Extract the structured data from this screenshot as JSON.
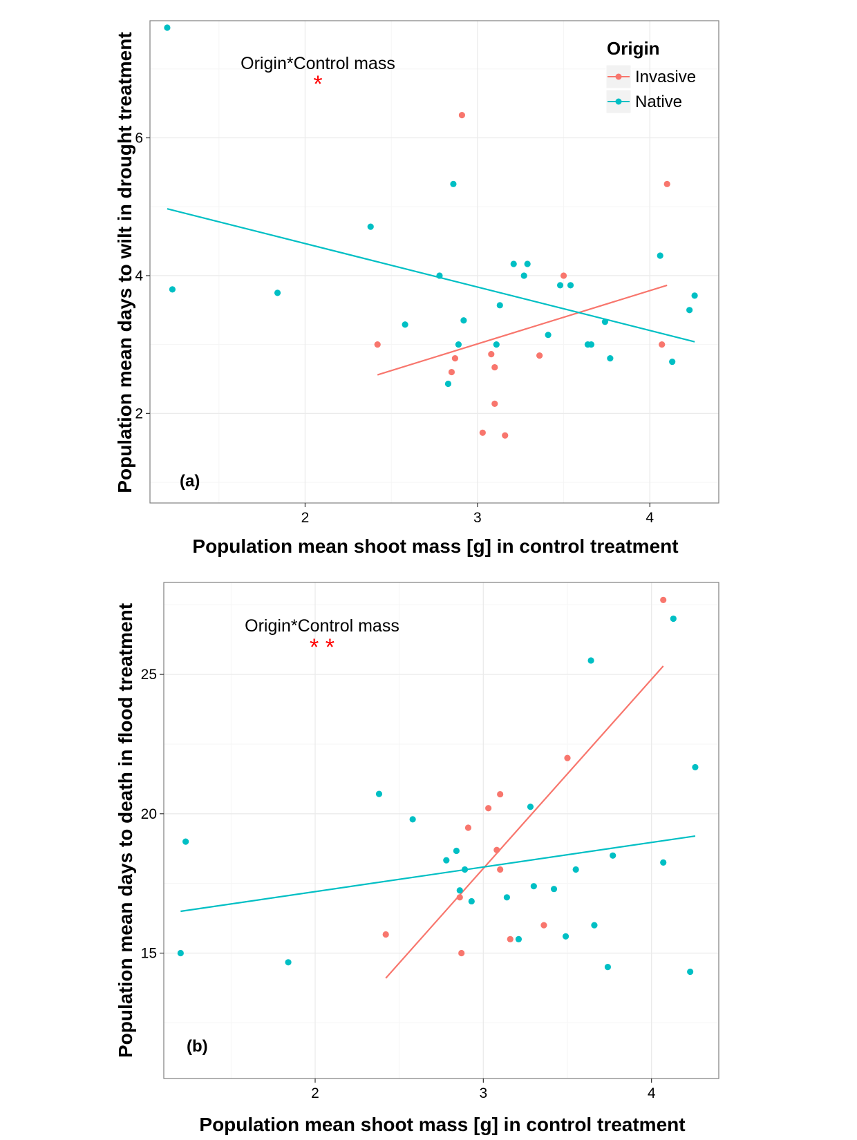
{
  "colors": {
    "Invasive": "#F8766D",
    "Native": "#00BFC4",
    "star": "#FF0000",
    "grid": "#EBEBEB",
    "border": "#7F7F7F"
  },
  "legend": {
    "title": "Origin",
    "items": [
      "Invasive",
      "Native"
    ]
  },
  "chart_data": [
    {
      "type": "scatter",
      "panel_label": "(a)",
      "xlabel": "Population mean shoot mass [g] in control treatment",
      "ylabel": "Population mean days to wilt in drought treatment",
      "annotation": "Origin*Control mass",
      "significance": "*",
      "xlim": [
        1.1,
        4.4
      ],
      "ylim": [
        0.7,
        7.7
      ],
      "xticks": [
        2,
        3,
        4
      ],
      "yticks": [
        2,
        4,
        6
      ],
      "legend_position": "top-right",
      "series": [
        {
          "name": "Invasive",
          "points": [
            [
              2.42,
              3.0
            ],
            [
              2.85,
              2.6
            ],
            [
              2.87,
              2.8
            ],
            [
              2.91,
              6.33
            ],
            [
              3.03,
              1.72
            ],
            [
              3.08,
              2.86
            ],
            [
              3.1,
              2.67
            ],
            [
              3.1,
              2.14
            ],
            [
              3.16,
              1.68
            ],
            [
              3.36,
              2.84
            ],
            [
              3.5,
              4.0
            ],
            [
              4.07,
              3.0
            ],
            [
              4.1,
              5.33
            ]
          ],
          "fit": [
            [
              2.42,
              2.56
            ],
            [
              4.1,
              3.86
            ]
          ]
        },
        {
          "name": "Native",
          "points": [
            [
              1.2,
              7.6
            ],
            [
              1.23,
              3.8
            ],
            [
              1.84,
              3.75
            ],
            [
              2.38,
              4.71
            ],
            [
              2.58,
              3.29
            ],
            [
              2.78,
              4.0
            ],
            [
              2.83,
              2.43
            ],
            [
              2.86,
              5.33
            ],
            [
              2.89,
              3.0
            ],
            [
              2.92,
              3.35
            ],
            [
              3.11,
              3.0
            ],
            [
              3.13,
              3.57
            ],
            [
              3.21,
              4.17
            ],
            [
              3.27,
              4.0
            ],
            [
              3.29,
              4.17
            ],
            [
              3.41,
              3.14
            ],
            [
              3.48,
              3.86
            ],
            [
              3.54,
              3.86
            ],
            [
              3.64,
              3.0
            ],
            [
              3.66,
              3.0
            ],
            [
              3.74,
              3.33
            ],
            [
              3.77,
              2.8
            ],
            [
              4.06,
              4.29
            ],
            [
              4.13,
              2.75
            ],
            [
              4.23,
              3.5
            ],
            [
              4.26,
              3.71
            ]
          ],
          "fit": [
            [
              1.2,
              4.97
            ],
            [
              4.26,
              3.04
            ]
          ]
        }
      ]
    },
    {
      "type": "scatter",
      "panel_label": "(b)",
      "xlabel": "Population mean shoot mass [g] in control treatment",
      "ylabel": "Population mean days to death in flood treatment",
      "annotation": "Origin*Control mass",
      "significance": "* *",
      "xlim": [
        1.1,
        4.4
      ],
      "ylim": [
        10.5,
        28.3
      ],
      "xticks": [
        2,
        3,
        4
      ],
      "yticks": [
        15,
        20,
        25
      ],
      "series": [
        {
          "name": "Invasive",
          "points": [
            [
              2.42,
              15.67
            ],
            [
              2.86,
              17.0
            ],
            [
              2.87,
              15.0
            ],
            [
              2.91,
              19.5
            ],
            [
              3.03,
              20.2
            ],
            [
              3.08,
              18.7
            ],
            [
              3.1,
              18.0
            ],
            [
              3.1,
              20.7
            ],
            [
              3.16,
              15.5
            ],
            [
              3.36,
              16.0
            ],
            [
              3.5,
              22.0
            ],
            [
              4.07,
              27.67
            ]
          ],
          "fit": [
            [
              2.42,
              14.1
            ],
            [
              4.07,
              25.3
            ]
          ]
        },
        {
          "name": "Native",
          "points": [
            [
              1.2,
              15.0
            ],
            [
              1.23,
              19.0
            ],
            [
              1.84,
              14.67
            ],
            [
              2.38,
              20.71
            ],
            [
              2.58,
              19.8
            ],
            [
              2.78,
              18.33
            ],
            [
              2.84,
              18.67
            ],
            [
              2.86,
              17.25
            ],
            [
              2.89,
              18.0
            ],
            [
              2.93,
              16.86
            ],
            [
              3.14,
              17.0
            ],
            [
              3.21,
              15.5
            ],
            [
              3.28,
              20.25
            ],
            [
              3.3,
              17.4
            ],
            [
              3.42,
              17.3
            ],
            [
              3.49,
              15.6
            ],
            [
              3.55,
              18.0
            ],
            [
              3.64,
              25.5
            ],
            [
              3.66,
              16.0
            ],
            [
              3.74,
              14.5
            ],
            [
              3.77,
              18.5
            ],
            [
              4.07,
              18.25
            ],
            [
              4.13,
              27.0
            ],
            [
              4.23,
              14.33
            ],
            [
              4.26,
              21.67
            ]
          ],
          "fit": [
            [
              1.2,
              16.5
            ],
            [
              4.26,
              19.2
            ]
          ]
        }
      ]
    }
  ]
}
